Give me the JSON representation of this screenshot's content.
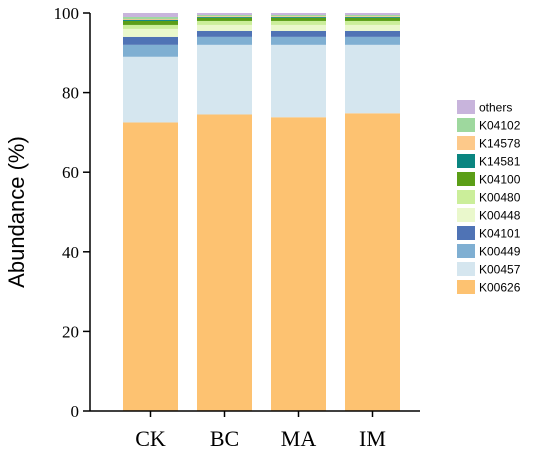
{
  "chart_data": {
    "type": "bar",
    "stacked": true,
    "categories": [
      "CK",
      "BC",
      "MA",
      "IM"
    ],
    "ylabel": "Abundance (%)",
    "xlabel": "",
    "ylim": [
      0,
      100
    ],
    "yticks": [
      0,
      20,
      40,
      60,
      80,
      100
    ],
    "grid": false,
    "legend_position": "right",
    "series": [
      {
        "name": "K00626",
        "color": "#FDC271",
        "values": [
          72.5,
          74.5,
          73.8,
          74.8
        ]
      },
      {
        "name": "K00457",
        "color": "#D5E6EF",
        "values": [
          16.5,
          17.5,
          18.2,
          17.2
        ]
      },
      {
        "name": "K00449",
        "color": "#7FAFD2",
        "values": [
          3.0,
          2.0,
          2.0,
          2.0
        ]
      },
      {
        "name": "K04101",
        "color": "#4F73B5",
        "values": [
          2.0,
          1.5,
          1.5,
          1.5
        ]
      },
      {
        "name": "K00448",
        "color": "#EAF8CC",
        "values": [
          2.0,
          1.5,
          1.5,
          1.5
        ]
      },
      {
        "name": "K00480",
        "color": "#CBEE9A",
        "values": [
          1.0,
          1.0,
          1.0,
          1.0
        ]
      },
      {
        "name": "K04100",
        "color": "#5B9E17",
        "values": [
          1.0,
          0.8,
          0.8,
          0.8
        ]
      },
      {
        "name": "K14581",
        "color": "#0A8580",
        "values": [
          0.3,
          0.2,
          0.2,
          0.2
        ]
      },
      {
        "name": "K14578",
        "color": "#FDC98A",
        "values": [
          0.2,
          0.2,
          0.2,
          0.2
        ]
      },
      {
        "name": "K04102",
        "color": "#9ED89E",
        "values": [
          0.5,
          0.3,
          0.3,
          0.3
        ]
      },
      {
        "name": "others",
        "color": "#C8B4DC",
        "values": [
          1.0,
          0.5,
          0.5,
          0.5
        ]
      }
    ]
  }
}
